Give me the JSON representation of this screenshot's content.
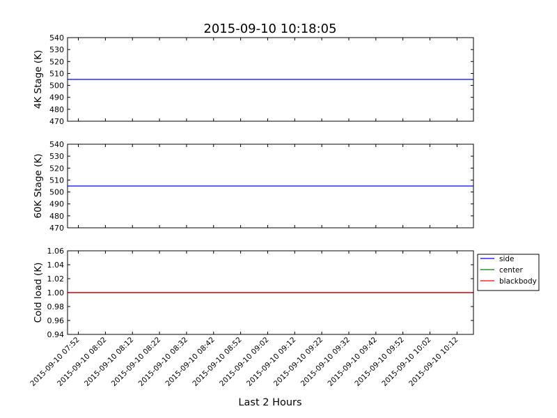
{
  "figure": {
    "title": "2015-09-10 10:18:05",
    "xlabel": "Last 2 Hours"
  },
  "chart_data": [
    {
      "type": "line",
      "ylabel": "4K Stage (K)",
      "ylim": [
        470,
        540
      ],
      "yticks": [
        "470",
        "480",
        "490",
        "500",
        "510",
        "520",
        "530",
        "540"
      ],
      "xlim": [
        "2015-09-10 07:48",
        "2015-09-10 10:18:05"
      ],
      "grid": false,
      "series": [
        {
          "color": "#0000ff",
          "x": [
            "2015-09-10 07:48",
            "2015-09-10 10:18:05"
          ],
          "values": [
            505,
            505
          ]
        }
      ]
    },
    {
      "type": "line",
      "ylabel": "60K Stage (K)",
      "ylim": [
        470,
        540
      ],
      "yticks": [
        "470",
        "480",
        "490",
        "500",
        "510",
        "520",
        "530",
        "540"
      ],
      "xlim": [
        "2015-09-10 07:48",
        "2015-09-10 10:18:05"
      ],
      "grid": false,
      "series": [
        {
          "color": "#0000ff",
          "x": [
            "2015-09-10 07:48",
            "2015-09-10 10:18:05"
          ],
          "values": [
            505,
            505
          ]
        }
      ]
    },
    {
      "type": "line",
      "ylabel": "Cold load (K)",
      "ylim": [
        0.94,
        1.06
      ],
      "yticks": [
        "0.94",
        "0.96",
        "0.98",
        "1.00",
        "1.02",
        "1.04",
        "1.06"
      ],
      "xlim": [
        "2015-09-10 07:48",
        "2015-09-10 10:18:05"
      ],
      "xticks": [
        "2015-09-10 07:52",
        "2015-09-10 08:02",
        "2015-09-10 08:12",
        "2015-09-10 08:22",
        "2015-09-10 08:32",
        "2015-09-10 08:42",
        "2015-09-10 08:52",
        "2015-09-10 09:02",
        "2015-09-10 09:12",
        "2015-09-10 09:22",
        "2015-09-10 09:32",
        "2015-09-10 09:42",
        "2015-09-10 09:52",
        "2015-09-10 10:02",
        "2015-09-10 10:12"
      ],
      "grid": false,
      "legend": "outside-right",
      "series": [
        {
          "name": "side",
          "color": "#0000ff",
          "x": [
            "2015-09-10 07:48",
            "2015-09-10 10:18:05"
          ],
          "values": [
            1.0,
            1.0
          ]
        },
        {
          "name": "center",
          "color": "#008000",
          "x": [
            "2015-09-10 07:48",
            "2015-09-10 10:18:05"
          ],
          "values": [
            1.0,
            1.0
          ]
        },
        {
          "name": "blackbody",
          "color": "#ff0000",
          "x": [
            "2015-09-10 07:48",
            "2015-09-10 10:18:05"
          ],
          "values": [
            1.0,
            1.0
          ]
        }
      ]
    }
  ]
}
